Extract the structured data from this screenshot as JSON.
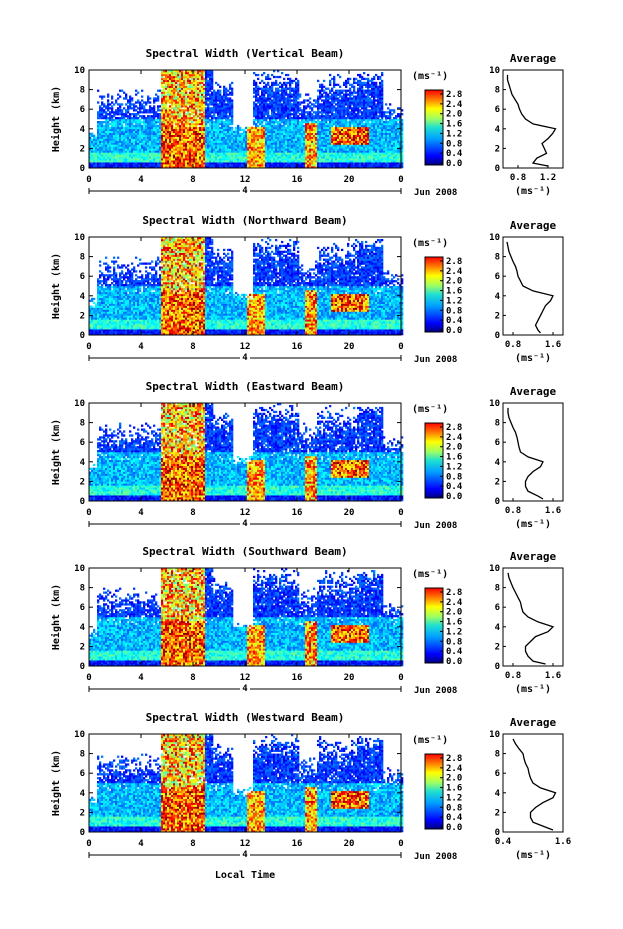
{
  "figure": {
    "xlabel_bottom": "Local Time",
    "date_label": "Jun 2008",
    "day_marker": "4"
  },
  "chart_data": [
    {
      "type": "heatmap",
      "title": "Spectral Width (Vertical Beam)",
      "xlabel": "",
      "ylabel": "Height (km)",
      "xlim": [
        0,
        24
      ],
      "ylim": [
        0,
        10
      ],
      "xticks": [
        "0",
        "4",
        "8",
        "12",
        "16",
        "20",
        "0"
      ],
      "yticks": [
        "0",
        "2",
        "4",
        "6",
        "8",
        "10"
      ],
      "colorbar": {
        "label": "(ms⁻¹)",
        "ticks": [
          "2.8",
          "2.4",
          "2.0",
          "1.6",
          "1.2",
          "0.8",
          "0.4",
          "0.0"
        ],
        "range": [
          0,
          2.8
        ]
      },
      "profile": {
        "title": "Average",
        "xlabel": "(ms⁻¹)",
        "xticks": [
          "0.8",
          "1.2"
        ],
        "xlim": [
          0.6,
          1.4
        ],
        "ylim": [
          0,
          10
        ],
        "height": [
          0.2,
          0.5,
          1.0,
          1.5,
          2.0,
          2.5,
          3.0,
          3.5,
          4.0,
          4.5,
          5.0,
          5.5,
          6.0,
          6.5,
          7.0,
          7.5,
          8.0,
          8.5,
          9.0,
          9.5
        ],
        "value": [
          1.2,
          1.0,
          1.05,
          1.18,
          1.15,
          1.12,
          1.2,
          1.26,
          1.3,
          1.0,
          0.9,
          0.85,
          0.82,
          0.8,
          0.76,
          0.72,
          0.7,
          0.68,
          0.66,
          0.66
        ]
      }
    },
    {
      "type": "heatmap",
      "title": "Spectral Width (Northward Beam)",
      "xlabel": "",
      "ylabel": "Height (km)",
      "xlim": [
        0,
        24
      ],
      "ylim": [
        0,
        10
      ],
      "xticks": [
        "0",
        "4",
        "8",
        "12",
        "16",
        "20",
        "0"
      ],
      "yticks": [
        "0",
        "2",
        "4",
        "6",
        "8",
        "10"
      ],
      "colorbar": {
        "label": "(ms⁻¹)",
        "ticks": [
          "2.8",
          "2.4",
          "2.0",
          "1.6",
          "1.2",
          "0.8",
          "0.4",
          "0.0"
        ],
        "range": [
          0,
          2.8
        ]
      },
      "profile": {
        "title": "Average",
        "xlabel": "(ms⁻¹)",
        "xticks": [
          "0.8",
          "1.6"
        ],
        "xlim": [
          0.6,
          1.8
        ],
        "ylim": [
          0,
          10
        ],
        "height": [
          0.2,
          0.5,
          1.0,
          1.5,
          2.0,
          2.5,
          3.0,
          3.5,
          4.0,
          4.5,
          5.0,
          5.5,
          6.0,
          6.5,
          7.0,
          7.5,
          8.0,
          8.5,
          9.0,
          9.5
        ],
        "value": [
          1.35,
          1.3,
          1.25,
          1.3,
          1.35,
          1.4,
          1.45,
          1.55,
          1.6,
          1.2,
          1.0,
          0.95,
          0.9,
          0.88,
          0.85,
          0.8,
          0.76,
          0.72,
          0.7,
          0.68
        ]
      }
    },
    {
      "type": "heatmap",
      "title": "Spectral Width (Eastward Beam)",
      "xlabel": "",
      "ylabel": "Height (km)",
      "xlim": [
        0,
        24
      ],
      "ylim": [
        0,
        10
      ],
      "xticks": [
        "0",
        "4",
        "8",
        "12",
        "16",
        "20",
        "0"
      ],
      "yticks": [
        "0",
        "2",
        "4",
        "6",
        "8",
        "10"
      ],
      "colorbar": {
        "label": "(ms⁻¹)",
        "ticks": [
          "2.8",
          "2.4",
          "2.0",
          "1.6",
          "1.2",
          "0.8",
          "0.4",
          "0.0"
        ],
        "range": [
          0,
          2.8
        ]
      },
      "profile": {
        "title": "Average",
        "xlabel": "(ms⁻¹)",
        "xticks": [
          "0.8",
          "1.6"
        ],
        "xlim": [
          0.6,
          1.8
        ],
        "ylim": [
          0,
          10
        ],
        "height": [
          0.2,
          0.5,
          1.0,
          1.5,
          2.0,
          2.5,
          3.0,
          3.5,
          4.0,
          4.5,
          5.0,
          5.5,
          6.0,
          6.5,
          7.0,
          7.5,
          8.0,
          8.5,
          9.0,
          9.5
        ],
        "value": [
          1.4,
          1.3,
          1.1,
          1.05,
          1.05,
          1.1,
          1.2,
          1.35,
          1.4,
          1.1,
          0.95,
          0.92,
          0.9,
          0.88,
          0.85,
          0.8,
          0.76,
          0.72,
          0.7,
          0.7
        ]
      }
    },
    {
      "type": "heatmap",
      "title": "Spectral Width (Southward Beam)",
      "xlabel": "",
      "ylabel": "Height (km)",
      "xlim": [
        0,
        24
      ],
      "ylim": [
        0,
        10
      ],
      "xticks": [
        "0",
        "4",
        "8",
        "12",
        "16",
        "20",
        "0"
      ],
      "yticks": [
        "0",
        "2",
        "4",
        "6",
        "8",
        "10"
      ],
      "colorbar": {
        "label": "(ms⁻¹)",
        "ticks": [
          "2.8",
          "2.4",
          "2.0",
          "1.6",
          "1.2",
          "0.8",
          "0.4",
          "0.0"
        ],
        "range": [
          0,
          2.8
        ]
      },
      "profile": {
        "title": "Average",
        "xlabel": "(ms⁻¹)",
        "xticks": [
          "0.8",
          "1.6"
        ],
        "xlim": [
          0.6,
          1.8
        ],
        "ylim": [
          0,
          10
        ],
        "height": [
          0.2,
          0.5,
          1.0,
          1.5,
          2.0,
          2.5,
          3.0,
          3.5,
          4.0,
          4.5,
          5.0,
          5.5,
          6.0,
          6.5,
          7.0,
          7.5,
          8.0,
          8.5,
          9.0,
          9.5
        ],
        "value": [
          1.45,
          1.2,
          1.1,
          1.05,
          1.05,
          1.15,
          1.25,
          1.5,
          1.6,
          1.3,
          1.1,
          1.0,
          0.97,
          0.95,
          0.9,
          0.85,
          0.8,
          0.76,
          0.72,
          0.7
        ]
      }
    },
    {
      "type": "heatmap",
      "title": "Spectral Width (Westward Beam)",
      "xlabel": "Local Time",
      "ylabel": "Height (km)",
      "xlim": [
        0,
        24
      ],
      "ylim": [
        0,
        10
      ],
      "xticks": [
        "0",
        "4",
        "8",
        "12",
        "16",
        "20",
        "0"
      ],
      "yticks": [
        "0",
        "2",
        "4",
        "6",
        "8",
        "10"
      ],
      "colorbar": {
        "label": "(ms⁻¹)",
        "ticks": [
          "2.8",
          "2.4",
          "2.0",
          "1.6",
          "1.2",
          "0.8",
          "0.4",
          "0.0"
        ],
        "range": [
          0,
          2.8
        ]
      },
      "profile": {
        "title": "Average",
        "xlabel": "(ms⁻¹)",
        "xticks": [
          "0.4",
          "1.6"
        ],
        "xlim": [
          0.4,
          1.6
        ],
        "ylim": [
          0,
          10
        ],
        "height": [
          0.2,
          0.5,
          1.0,
          1.5,
          2.0,
          2.5,
          3.0,
          3.5,
          4.0,
          4.5,
          5.0,
          5.5,
          6.0,
          6.5,
          7.0,
          7.5,
          8.0,
          8.5,
          9.0,
          9.5
        ],
        "value": [
          1.4,
          1.25,
          1.0,
          0.95,
          0.95,
          1.05,
          1.2,
          1.4,
          1.45,
          1.15,
          1.0,
          0.95,
          0.92,
          0.9,
          0.85,
          0.82,
          0.8,
          0.72,
          0.65,
          0.6
        ]
      }
    }
  ]
}
